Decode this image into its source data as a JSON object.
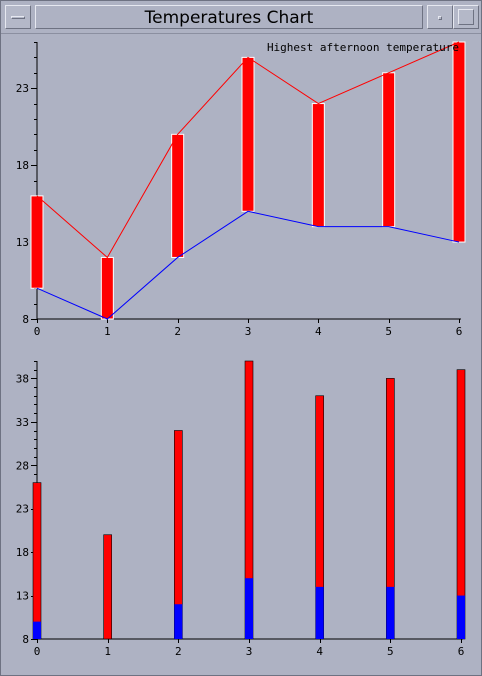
{
  "window": {
    "title": "Temperatures Chart"
  },
  "colors": {
    "background": "#aeb2c3",
    "high": "#ff0000",
    "low": "#0000ff",
    "bar": "#ff0000",
    "bar_low": "#0000ff",
    "axis": "#000000",
    "bar_border": "#ffffff"
  },
  "chart_data": [
    {
      "type": "line",
      "annotation": "Highest afternoon temperature",
      "x": [
        0,
        1,
        2,
        3,
        4,
        5,
        6
      ],
      "xlim": [
        0,
        6
      ],
      "ylim": [
        8,
        26
      ],
      "yticks": [
        8,
        13,
        18,
        23
      ],
      "series": [
        {
          "values": [
            16,
            12,
            20,
            25,
            22,
            24,
            26
          ]
        },
        {
          "values": [
            10,
            8,
            12,
            15,
            14,
            14,
            13
          ]
        }
      ]
    },
    {
      "type": "bar",
      "x": [
        0,
        1,
        2,
        3,
        4,
        5,
        6
      ],
      "xlim": [
        0,
        6
      ],
      "ylim": [
        8,
        40
      ],
      "yticks": [
        8,
        13,
        18,
        23,
        28,
        33,
        38
      ],
      "series": [
        {
          "values": [
            26,
            20,
            32,
            40,
            36,
            38,
            39
          ]
        },
        {
          "values": [
            10,
            8,
            12,
            15,
            14,
            14,
            13
          ]
        }
      ]
    }
  ]
}
